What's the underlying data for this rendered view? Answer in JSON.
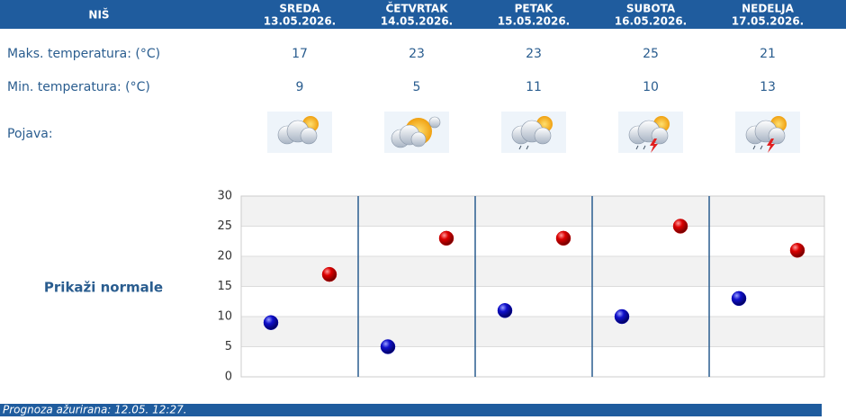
{
  "city": "NIŠ",
  "pojava_label": "Pojava:",
  "toggle": "Prikaži normale",
  "footer": "Prognoza ažurirana:  12.05. 12:27.",
  "chart_data": {
    "type": "scatter",
    "categories": [
      "SREDA",
      "ČETVRTAK",
      "PETAK",
      "SUBOTA",
      "NEDELJA"
    ],
    "dates": [
      "13.05.2026.",
      "14.05.2026.",
      "15.05.2026.",
      "16.05.2026.",
      "17.05.2026."
    ],
    "series": [
      {
        "name": "Maks. temperatura: (°C)",
        "color": "#cc0000",
        "values": [
          17,
          23,
          23,
          25,
          21
        ]
      },
      {
        "name": "Min. temperatura: (°C)",
        "color": "#0000bb",
        "values": [
          9,
          5,
          11,
          10,
          13
        ]
      }
    ],
    "ylim": [
      0,
      30
    ],
    "yticks": [
      0,
      5,
      10,
      15,
      20,
      25,
      30
    ],
    "grid": true
  }
}
